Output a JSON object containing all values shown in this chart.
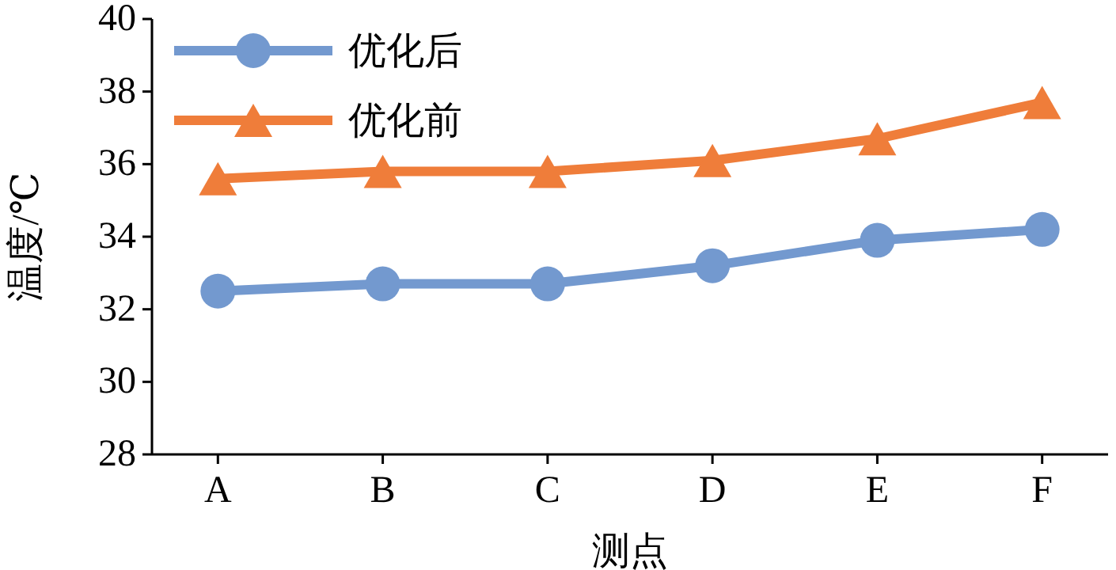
{
  "chart_data": {
    "type": "line",
    "xlabel": "测点",
    "ylabel": "温度/℃",
    "categories": [
      "A",
      "B",
      "C",
      "D",
      "E",
      "F"
    ],
    "series": [
      {
        "name": "优化后",
        "color": "#7399cf",
        "marker": "circle",
        "values": [
          32.5,
          32.7,
          32.7,
          33.2,
          33.9,
          34.2
        ]
      },
      {
        "name": "优化前",
        "color": "#ef7d3a",
        "marker": "triangle",
        "values": [
          35.6,
          35.8,
          35.8,
          36.1,
          36.7,
          37.7
        ]
      }
    ],
    "ylim": [
      28,
      40
    ],
    "yticks": [
      28,
      30,
      32,
      34,
      36,
      38,
      40
    ],
    "legend": "top left"
  }
}
